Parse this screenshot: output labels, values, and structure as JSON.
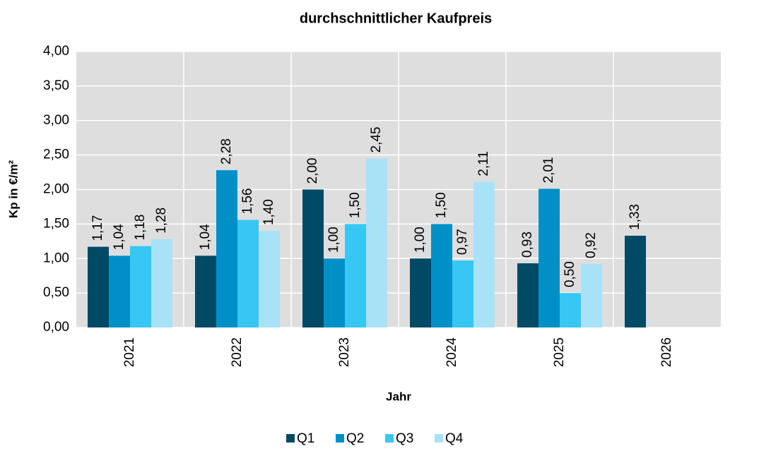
{
  "chart_data": {
    "type": "bar",
    "title": "durchschnittlicher Kaufpreis",
    "x_label": "Jahr",
    "y_label": "Kp in €/m²",
    "categories": [
      "2021",
      "2022",
      "2023",
      "2024",
      "2025",
      "2026"
    ],
    "series": [
      {
        "name": "Q1",
        "color": "#004a66",
        "values": [
          1.17,
          1.04,
          2.0,
          1.0,
          0.93,
          1.33
        ],
        "value_labels": [
          "1,17",
          "1,04",
          "2,00",
          "1,00",
          "0,93",
          "1,33"
        ]
      },
      {
        "name": "Q2",
        "color": "#0090c8",
        "values": [
          1.04,
          2.28,
          1.0,
          1.5,
          2.01,
          null
        ],
        "value_labels": [
          "1,04",
          "2,28",
          "1,00",
          "1,50",
          "2,01",
          null
        ]
      },
      {
        "name": "Q3",
        "color": "#38c6f4",
        "values": [
          1.18,
          1.56,
          1.5,
          0.97,
          0.5,
          null
        ],
        "value_labels": [
          "1,18",
          "1,56",
          "1,50",
          "0,97",
          "0,50",
          null
        ]
      },
      {
        "name": "Q4",
        "color": "#a8e2f7",
        "values": [
          1.28,
          1.4,
          2.45,
          2.11,
          0.92,
          null
        ],
        "value_labels": [
          "1,28",
          "1,40",
          "2,45",
          "2,11",
          "0,92",
          null
        ]
      }
    ],
    "ylim": [
      0,
      4
    ],
    "yticks": [
      {
        "value": 0,
        "label": "0,00"
      },
      {
        "value": 0.5,
        "label": "0,50"
      },
      {
        "value": 1,
        "label": "1,00"
      },
      {
        "value": 1.5,
        "label": "1,50"
      },
      {
        "value": 2,
        "label": "2,00"
      },
      {
        "value": 2.5,
        "label": "2,50"
      },
      {
        "value": 3,
        "label": "3,00"
      },
      {
        "value": 3.5,
        "label": "3,50"
      },
      {
        "value": 4,
        "label": "4,00"
      }
    ],
    "grid": true,
    "legend": "bottom"
  }
}
